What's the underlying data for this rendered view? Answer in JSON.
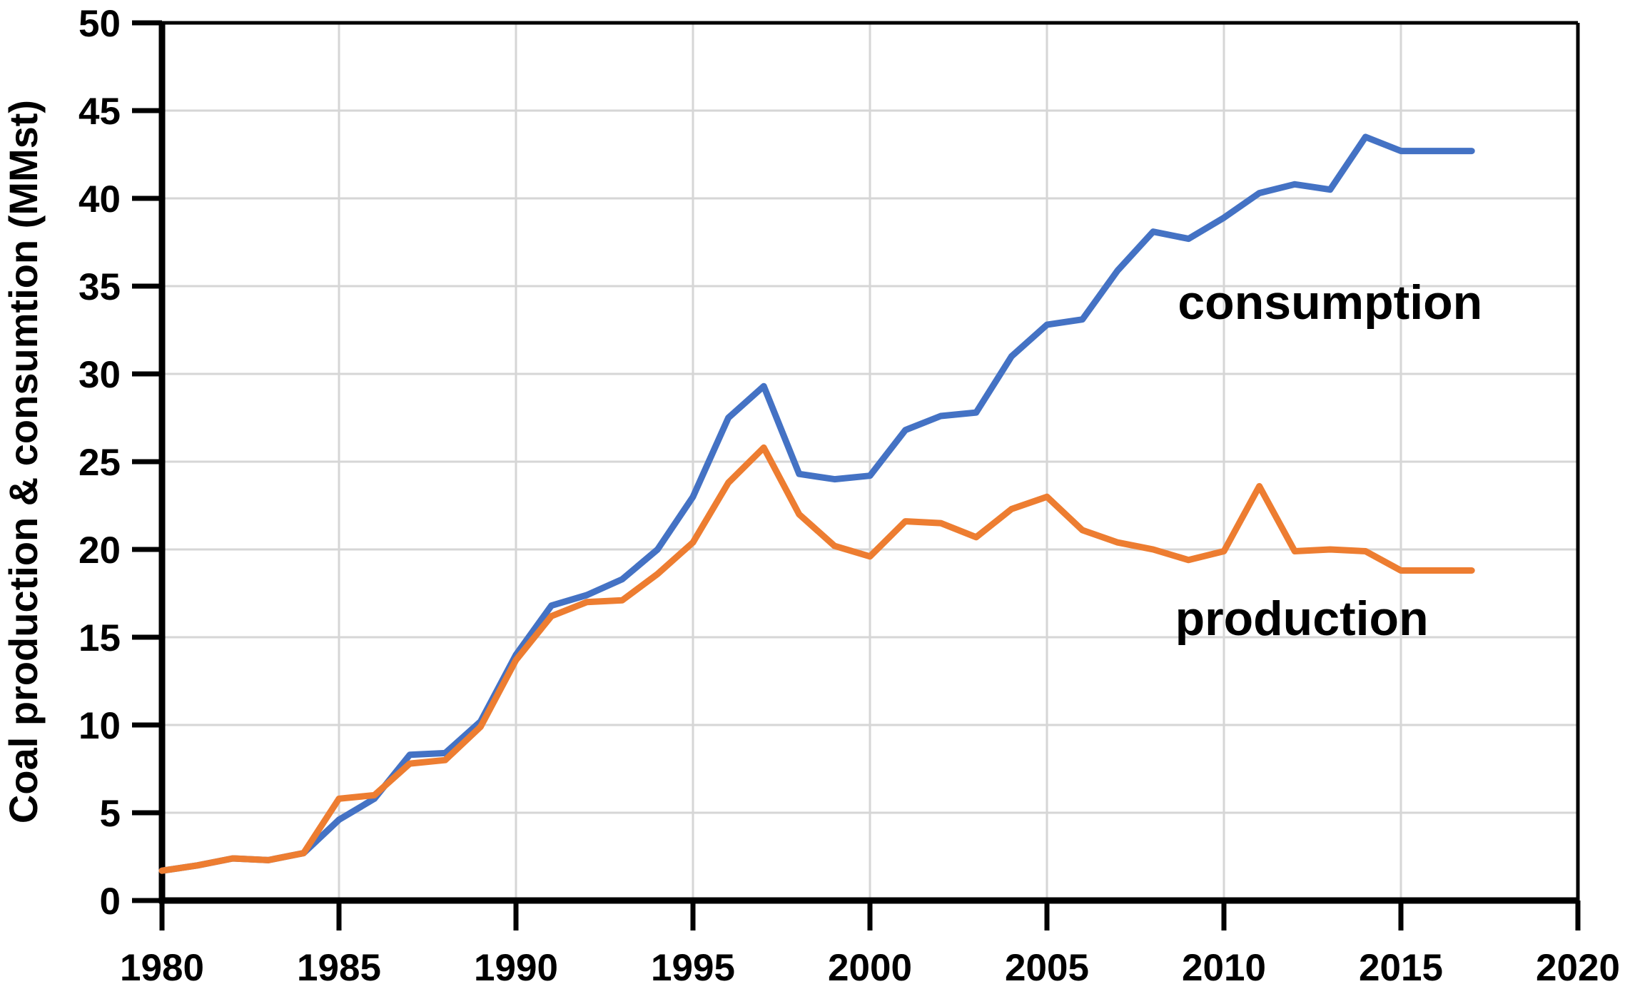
{
  "page": {
    "background": "#FFFFFF"
  },
  "chart_data": {
    "type": "line",
    "title": "",
    "xlabel": "",
    "ylabel": "Coal production & consumtion (MMst)",
    "xlim": [
      1980,
      2020
    ],
    "ylim": [
      0,
      50
    ],
    "xticks": [
      1980,
      1985,
      1990,
      1995,
      2000,
      2005,
      2010,
      2015,
      2020
    ],
    "yticks": [
      0,
      5,
      10,
      15,
      20,
      25,
      30,
      35,
      40,
      45,
      50
    ],
    "grid": true,
    "legend_position": "inline-annotations",
    "x": [
      1980,
      1981,
      1982,
      1983,
      1984,
      1985,
      1986,
      1987,
      1988,
      1989,
      1990,
      1991,
      1992,
      1993,
      1994,
      1995,
      1996,
      1997,
      1998,
      1999,
      2000,
      2001,
      2002,
      2003,
      2004,
      2005,
      2006,
      2007,
      2008,
      2009,
      2010,
      2011,
      2012,
      2013,
      2014,
      2015,
      2016,
      2017
    ],
    "series": [
      {
        "name": "consumption",
        "color": "#4472C4",
        "values": [
          1.7,
          2.0,
          2.4,
          2.3,
          2.7,
          4.6,
          5.8,
          8.3,
          8.4,
          10.2,
          14.0,
          16.8,
          17.4,
          18.3,
          20.0,
          23.0,
          27.5,
          29.3,
          24.3,
          24.0,
          24.2,
          26.8,
          27.6,
          27.8,
          31.0,
          32.8,
          33.1,
          35.9,
          38.1,
          37.7,
          38.9,
          40.3,
          40.8,
          40.5,
          43.5,
          42.7,
          42.7,
          42.7
        ]
      },
      {
        "name": "production",
        "color": "#ED7D31",
        "values": [
          1.7,
          2.0,
          2.4,
          2.3,
          2.7,
          5.8,
          6.0,
          7.8,
          8.0,
          9.9,
          13.7,
          16.2,
          17.0,
          17.1,
          18.6,
          20.4,
          23.8,
          25.8,
          22.0,
          20.2,
          19.6,
          21.6,
          21.5,
          20.7,
          22.3,
          23.0,
          21.1,
          20.4,
          20.0,
          19.4,
          19.9,
          23.6,
          19.9,
          20.0,
          19.9,
          18.8,
          18.8,
          18.8
        ]
      }
    ],
    "annotations": [
      {
        "text": "consumption",
        "x": 2013.0,
        "y": 34.1
      },
      {
        "text": "production",
        "x": 2012.2,
        "y": 16.1
      }
    ],
    "axis_color": "#000000",
    "grid_color": "#D6D6D6"
  }
}
